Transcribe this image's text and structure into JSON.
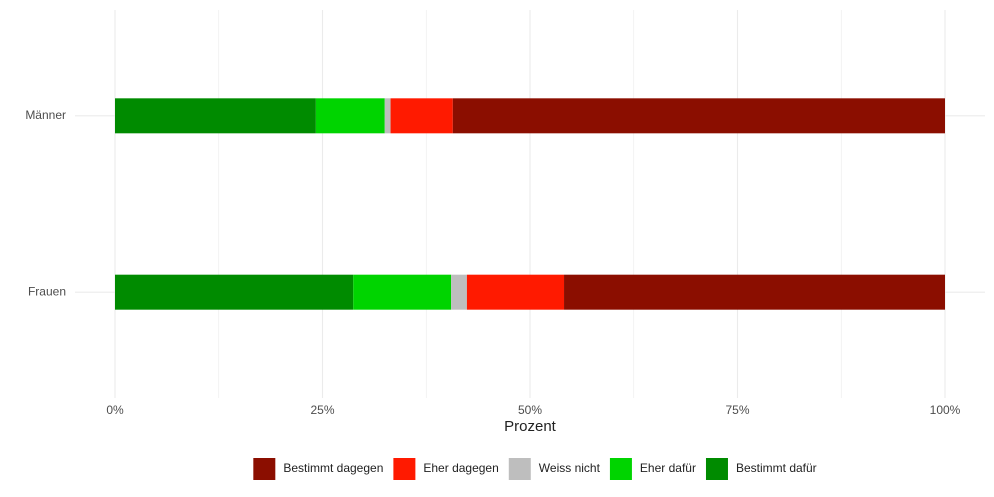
{
  "chart_data": {
    "type": "stacked_barh",
    "categories": [
      "Männer",
      "Frauen"
    ],
    "series": [
      {
        "name": "Bestimmt dagegen",
        "color": "#8b0e00",
        "values": [
          59.3,
          45.9
        ]
      },
      {
        "name": "Eher dagegen",
        "color": "#ff1a00",
        "values": [
          7.5,
          11.7
        ]
      },
      {
        "name": "Weiss nicht",
        "color": "#bebebe",
        "values": [
          0.7,
          1.9
        ]
      },
      {
        "name": "Eher dafür",
        "color": "#00d400",
        "values": [
          8.3,
          11.8
        ]
      },
      {
        "name": "Bestimmt dafür",
        "color": "#008b00",
        "values": [
          24.2,
          28.7
        ]
      }
    ],
    "x_label": "Prozent",
    "xlim": [
      0,
      100
    ],
    "xticks": [
      {
        "value": 0,
        "label": "0%"
      },
      {
        "value": 25,
        "label": "25%"
      },
      {
        "value": 50,
        "label": "50%"
      },
      {
        "value": 75,
        "label": "75%"
      },
      {
        "value": 100,
        "label": "100%"
      }
    ],
    "minor_xticks": [
      12.5,
      37.5,
      62.5,
      87.5
    ],
    "grid": true,
    "legend": "bottom"
  }
}
